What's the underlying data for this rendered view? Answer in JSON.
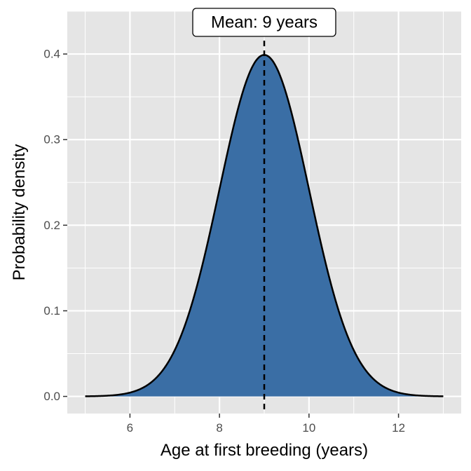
{
  "chart_data": {
    "type": "area",
    "distribution": "normal",
    "mean": 9,
    "sd": 1,
    "x_range": [
      5,
      13
    ],
    "xlim": [
      4.6,
      13.4
    ],
    "ylim": [
      -0.02,
      0.45
    ],
    "x_ticks": [
      6,
      8,
      10,
      12
    ],
    "y_ticks": [
      0.0,
      0.1,
      0.2,
      0.3,
      0.4
    ],
    "x_tick_labels": [
      "6",
      "8",
      "10",
      "12"
    ],
    "y_tick_labels": [
      "0.0",
      "0.1",
      "0.2",
      "0.3",
      "0.4"
    ],
    "xlabel": "Age at first breeding (years)",
    "ylabel": "Probability density",
    "annotation": {
      "text": "Mean: 9 years",
      "x": 9,
      "y": 0.437
    },
    "vline": {
      "x": 9,
      "style": "dashed"
    },
    "grid": true,
    "colors": {
      "fill": "#3a6ea5",
      "line": "#000000",
      "panel": "#e5e5e5",
      "grid": "#ffffff"
    }
  }
}
